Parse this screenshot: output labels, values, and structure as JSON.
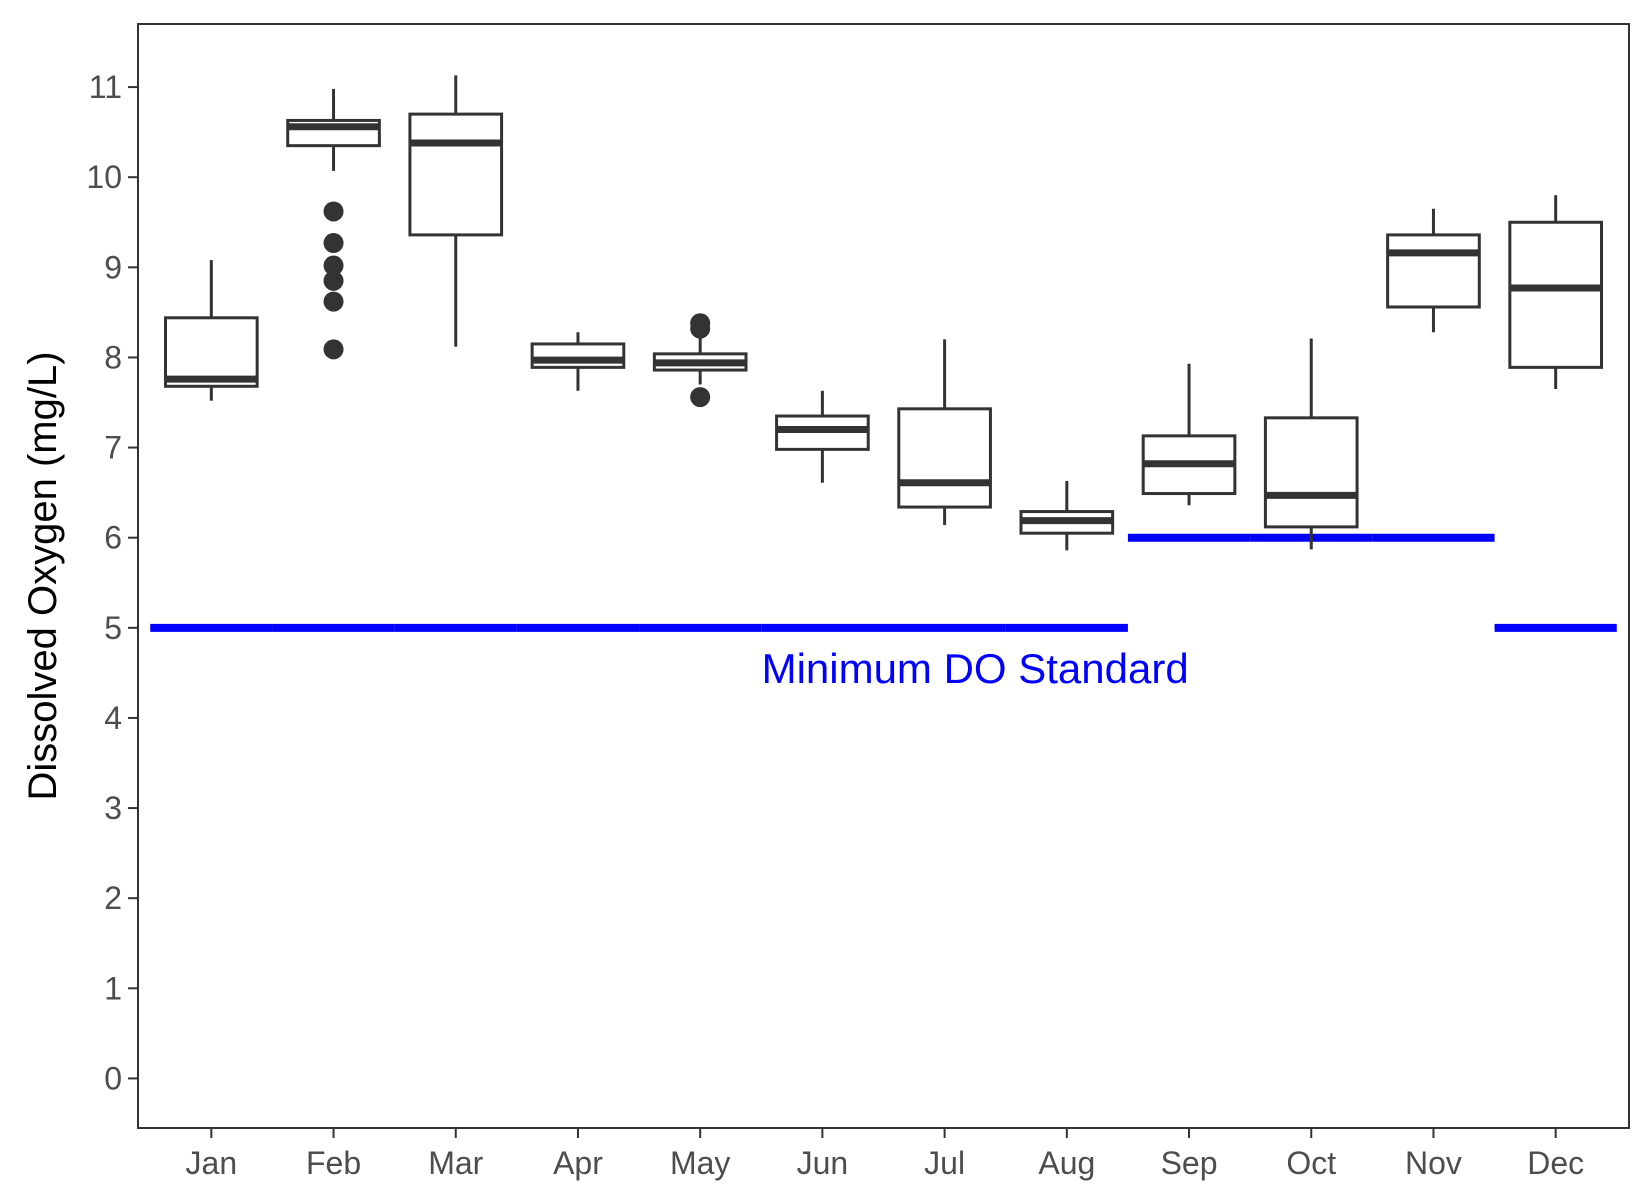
{
  "chart_data": {
    "type": "boxplot",
    "ylabel": "Dissolved Oxygen (mg/L)",
    "xlabel": "",
    "ylim": [
      -0.55,
      11.7
    ],
    "yticks": [
      0,
      1,
      2,
      3,
      4,
      5,
      6,
      7,
      8,
      9,
      10,
      11
    ],
    "categories": [
      "Jan",
      "Feb",
      "Mar",
      "Apr",
      "May",
      "Jun",
      "Jul",
      "Aug",
      "Sep",
      "Oct",
      "Nov",
      "Dec"
    ],
    "boxes": [
      {
        "month": "Jan",
        "whisker_low": 7.52,
        "q1": 7.68,
        "median": 7.76,
        "q3": 8.44,
        "whisker_high": 9.08,
        "outliers": []
      },
      {
        "month": "Feb",
        "whisker_low": 10.07,
        "q1": 10.35,
        "median": 10.56,
        "q3": 10.63,
        "whisker_high": 10.98,
        "outliers": [
          9.62,
          9.27,
          9.02,
          8.85,
          8.62,
          8.09
        ]
      },
      {
        "month": "Mar",
        "whisker_low": 8.12,
        "q1": 9.36,
        "median": 10.38,
        "q3": 10.7,
        "whisker_high": 11.13,
        "outliers": []
      },
      {
        "month": "Apr",
        "whisker_low": 7.63,
        "q1": 7.89,
        "median": 7.97,
        "q3": 8.15,
        "whisker_high": 8.28,
        "outliers": []
      },
      {
        "month": "May",
        "whisker_low": 7.7,
        "q1": 7.86,
        "median": 7.94,
        "q3": 8.04,
        "whisker_high": 8.27,
        "outliers": [
          8.38,
          8.32,
          7.56
        ]
      },
      {
        "month": "Jun",
        "whisker_low": 6.61,
        "q1": 6.98,
        "median": 7.2,
        "q3": 7.35,
        "whisker_high": 7.63,
        "outliers": []
      },
      {
        "month": "Jul",
        "whisker_low": 6.14,
        "q1": 6.34,
        "median": 6.61,
        "q3": 7.43,
        "whisker_high": 8.2,
        "outliers": []
      },
      {
        "month": "Aug",
        "whisker_low": 5.86,
        "q1": 6.05,
        "median": 6.19,
        "q3": 6.29,
        "whisker_high": 6.63,
        "outliers": []
      },
      {
        "month": "Sep",
        "whisker_low": 6.36,
        "q1": 6.49,
        "median": 6.82,
        "q3": 7.13,
        "whisker_high": 7.93,
        "outliers": []
      },
      {
        "month": "Oct",
        "whisker_low": 5.87,
        "q1": 6.12,
        "median": 6.47,
        "q3": 7.33,
        "whisker_high": 8.21,
        "outliers": []
      },
      {
        "month": "Nov",
        "whisker_low": 8.28,
        "q1": 8.56,
        "median": 9.16,
        "q3": 9.36,
        "whisker_high": 9.65,
        "outliers": []
      },
      {
        "month": "Dec",
        "whisker_low": 7.65,
        "q1": 7.89,
        "median": 8.77,
        "q3": 9.5,
        "whisker_high": 9.8,
        "outliers": []
      }
    ],
    "standard": {
      "values": [
        5,
        5,
        5,
        5,
        5,
        5,
        5,
        5,
        6,
        6,
        6,
        5
      ],
      "color": "#0000ff",
      "label": "Minimum DO Standard"
    },
    "grid": false,
    "box_color": "#333333"
  }
}
